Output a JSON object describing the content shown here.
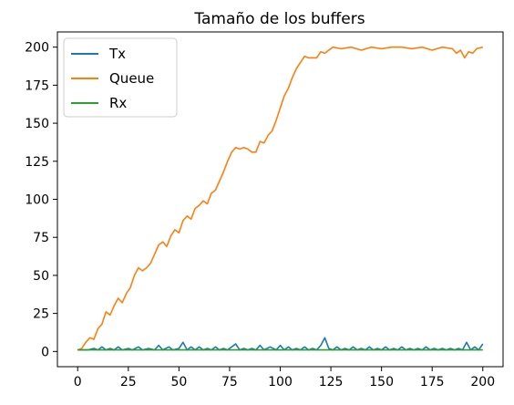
{
  "chart_data": {
    "type": "line",
    "title": "Tamaño de los buffers",
    "xlabel": "",
    "ylabel": "",
    "xlim": [
      -10,
      210
    ],
    "ylim": [
      -10,
      210
    ],
    "x_ticks": [
      0,
      25,
      50,
      75,
      100,
      125,
      150,
      175,
      200
    ],
    "y_ticks": [
      0,
      25,
      50,
      75,
      100,
      125,
      150,
      175,
      200
    ],
    "grid": false,
    "legend_position": "upper left",
    "series": [
      {
        "name": "Tx",
        "color": "#1f77b4",
        "points": [
          [
            0,
            1
          ],
          [
            5,
            1
          ],
          [
            8,
            2
          ],
          [
            10,
            1
          ],
          [
            12,
            3
          ],
          [
            14,
            1
          ],
          [
            16,
            2
          ],
          [
            18,
            1
          ],
          [
            20,
            3
          ],
          [
            22,
            1
          ],
          [
            25,
            2
          ],
          [
            27,
            1
          ],
          [
            30,
            3
          ],
          [
            32,
            1
          ],
          [
            35,
            2
          ],
          [
            38,
            1
          ],
          [
            40,
            4
          ],
          [
            42,
            1
          ],
          [
            45,
            3
          ],
          [
            47,
            1
          ],
          [
            50,
            2
          ],
          [
            52,
            6
          ],
          [
            54,
            1
          ],
          [
            56,
            3
          ],
          [
            58,
            1
          ],
          [
            60,
            3
          ],
          [
            62,
            1
          ],
          [
            64,
            2
          ],
          [
            66,
            1
          ],
          [
            68,
            3
          ],
          [
            70,
            1
          ],
          [
            72,
            2
          ],
          [
            74,
            1
          ],
          [
            76,
            3
          ],
          [
            78,
            5
          ],
          [
            80,
            1
          ],
          [
            82,
            2
          ],
          [
            84,
            1
          ],
          [
            86,
            2
          ],
          [
            88,
            1
          ],
          [
            90,
            4
          ],
          [
            92,
            1
          ],
          [
            95,
            3
          ],
          [
            98,
            1
          ],
          [
            100,
            4
          ],
          [
            102,
            1
          ],
          [
            104,
            3
          ],
          [
            106,
            1
          ],
          [
            108,
            2
          ],
          [
            110,
            1
          ],
          [
            112,
            3
          ],
          [
            114,
            1
          ],
          [
            116,
            2
          ],
          [
            118,
            1
          ],
          [
            120,
            4
          ],
          [
            122,
            9
          ],
          [
            124,
            2
          ],
          [
            126,
            1
          ],
          [
            128,
            3
          ],
          [
            130,
            1
          ],
          [
            132,
            2
          ],
          [
            134,
            1
          ],
          [
            136,
            3
          ],
          [
            138,
            1
          ],
          [
            140,
            2
          ],
          [
            142,
            1
          ],
          [
            144,
            3
          ],
          [
            146,
            1
          ],
          [
            148,
            2
          ],
          [
            150,
            1
          ],
          [
            152,
            3
          ],
          [
            154,
            1
          ],
          [
            156,
            2
          ],
          [
            158,
            1
          ],
          [
            160,
            3
          ],
          [
            162,
            1
          ],
          [
            164,
            2
          ],
          [
            166,
            1
          ],
          [
            168,
            2
          ],
          [
            170,
            1
          ],
          [
            172,
            3
          ],
          [
            174,
            1
          ],
          [
            176,
            2
          ],
          [
            178,
            1
          ],
          [
            180,
            2
          ],
          [
            182,
            1
          ],
          [
            184,
            2
          ],
          [
            186,
            1
          ],
          [
            188,
            2
          ],
          [
            190,
            1
          ],
          [
            192,
            6
          ],
          [
            194,
            1
          ],
          [
            196,
            3
          ],
          [
            198,
            1
          ],
          [
            200,
            5
          ]
        ]
      },
      {
        "name": "Queue",
        "color": "#ff7f0e",
        "points": [
          [
            0,
            1
          ],
          [
            2,
            2
          ],
          [
            4,
            6
          ],
          [
            6,
            9
          ],
          [
            8,
            8
          ],
          [
            10,
            15
          ],
          [
            12,
            18
          ],
          [
            14,
            26
          ],
          [
            16,
            24
          ],
          [
            18,
            30
          ],
          [
            20,
            35
          ],
          [
            22,
            32
          ],
          [
            24,
            38
          ],
          [
            26,
            42
          ],
          [
            28,
            50
          ],
          [
            30,
            55
          ],
          [
            32,
            53
          ],
          [
            34,
            55
          ],
          [
            36,
            58
          ],
          [
            38,
            64
          ],
          [
            40,
            70
          ],
          [
            42,
            72
          ],
          [
            44,
            69
          ],
          [
            46,
            76
          ],
          [
            48,
            80
          ],
          [
            50,
            78
          ],
          [
            52,
            86
          ],
          [
            54,
            89
          ],
          [
            56,
            87
          ],
          [
            58,
            94
          ],
          [
            60,
            96
          ],
          [
            62,
            99
          ],
          [
            64,
            97
          ],
          [
            66,
            104
          ],
          [
            68,
            106
          ],
          [
            70,
            112
          ],
          [
            72,
            118
          ],
          [
            74,
            125
          ],
          [
            76,
            131
          ],
          [
            78,
            134
          ],
          [
            80,
            133
          ],
          [
            82,
            134
          ],
          [
            84,
            133
          ],
          [
            86,
            131
          ],
          [
            88,
            131
          ],
          [
            90,
            138
          ],
          [
            92,
            137
          ],
          [
            94,
            142
          ],
          [
            96,
            145
          ],
          [
            98,
            152
          ],
          [
            100,
            160
          ],
          [
            102,
            168
          ],
          [
            104,
            173
          ],
          [
            106,
            180
          ],
          [
            108,
            186
          ],
          [
            110,
            190
          ],
          [
            112,
            194
          ],
          [
            114,
            193
          ],
          [
            116,
            193
          ],
          [
            118,
            193
          ],
          [
            120,
            197
          ],
          [
            122,
            196
          ],
          [
            124,
            198
          ],
          [
            126,
            200
          ],
          [
            130,
            199
          ],
          [
            135,
            200
          ],
          [
            140,
            198
          ],
          [
            145,
            200
          ],
          [
            150,
            199
          ],
          [
            155,
            200
          ],
          [
            160,
            200
          ],
          [
            165,
            199
          ],
          [
            170,
            200
          ],
          [
            175,
            198
          ],
          [
            180,
            200
          ],
          [
            185,
            199
          ],
          [
            187,
            196
          ],
          [
            189,
            198
          ],
          [
            191,
            193
          ],
          [
            193,
            197
          ],
          [
            195,
            196
          ],
          [
            197,
            199
          ],
          [
            200,
            200
          ]
        ]
      },
      {
        "name": "Rx",
        "color": "#2ca02c",
        "points": [
          [
            0,
            1
          ],
          [
            200,
            1
          ]
        ]
      }
    ]
  }
}
